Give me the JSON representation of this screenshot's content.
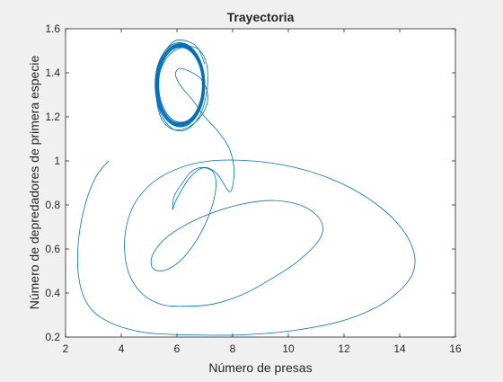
{
  "chart_data": {
    "type": "line",
    "title": "Trayectoria",
    "xlabel": "Número de presas",
    "ylabel": "Número de depredadores de primera especie",
    "xlim": [
      2,
      16
    ],
    "ylim": [
      0.2,
      1.6
    ],
    "xticks": [
      "2",
      "4",
      "6",
      "8",
      "10",
      "12",
      "14",
      "16"
    ],
    "yticks": [
      "0.2",
      "0.4",
      "0.6",
      "0.8",
      "1",
      "1.2",
      "1.4",
      "1.6"
    ],
    "grid": false,
    "legend": "none",
    "colors": {
      "line": "#0072BD",
      "axes_bg": "#ffffff",
      "figure_bg": "#f0f0f0",
      "axis": "#262626"
    },
    "series": [
      {
        "x": [
          3.55,
          3.1,
          2.7,
          2.45,
          2.5,
          2.9,
          3.7,
          4.9,
          6.5,
          8.3,
          10.2,
          12.1,
          13.6,
          14.5,
          14.3,
          13.2,
          11.5,
          9.4,
          7.2,
          5.6,
          4.6,
          4.15,
          4.2,
          4.65,
          5.4,
          6.3,
          7.3,
          8.3,
          9.2,
          10.3,
          11.1,
          11.2,
          10.6,
          9.5,
          8.2,
          6.8,
          5.7,
          5.15,
          5.1,
          5.4,
          5.85,
          6.3,
          6.8,
          7.2,
          7.4,
          7.3,
          6.9,
          6.5,
          6.2,
          5.9,
          5.85,
          6.0,
          6.5,
          7.0,
          7.45,
          7.9,
          8.05,
          7.9,
          7.5,
          7.0,
          6.6,
          6.2,
          6.0,
          5.95,
          6.1,
          6.4,
          6.8,
          7.05,
          7.1,
          6.9,
          6.5,
          6.0,
          5.55,
          5.3,
          5.3,
          5.5,
          5.9,
          6.5,
          6.9,
          7.1,
          7.05,
          6.8,
          6.3,
          5.8,
          5.4,
          5.25,
          5.35,
          5.7,
          6.1,
          6.7,
          7.0
        ],
        "y": [
          1.0,
          0.93,
          0.8,
          0.62,
          0.45,
          0.33,
          0.26,
          0.22,
          0.21,
          0.21,
          0.23,
          0.28,
          0.37,
          0.5,
          0.65,
          0.8,
          0.92,
          0.99,
          1.0,
          0.94,
          0.83,
          0.68,
          0.52,
          0.41,
          0.35,
          0.34,
          0.35,
          0.39,
          0.45,
          0.54,
          0.64,
          0.72,
          0.79,
          0.82,
          0.8,
          0.74,
          0.66,
          0.58,
          0.52,
          0.5,
          0.52,
          0.57,
          0.66,
          0.77,
          0.88,
          0.95,
          0.97,
          0.95,
          0.9,
          0.84,
          0.78,
          0.83,
          0.93,
          0.97,
          0.94,
          0.86,
          0.95,
          1.05,
          1.13,
          1.2,
          1.27,
          1.33,
          1.37,
          1.4,
          1.42,
          1.41,
          1.38,
          1.33,
          1.27,
          1.21,
          1.16,
          1.14,
          1.17,
          1.25,
          1.35,
          1.44,
          1.5,
          1.52,
          1.49,
          1.41,
          1.3,
          1.2,
          1.14,
          1.15,
          1.22,
          1.33,
          1.44,
          1.52,
          1.55,
          1.52,
          1.44
        ]
      }
    ],
    "limit_cycle": {
      "center": [
        6.12,
        1.345
      ],
      "radius": [
        0.88,
        0.19
      ]
    }
  }
}
